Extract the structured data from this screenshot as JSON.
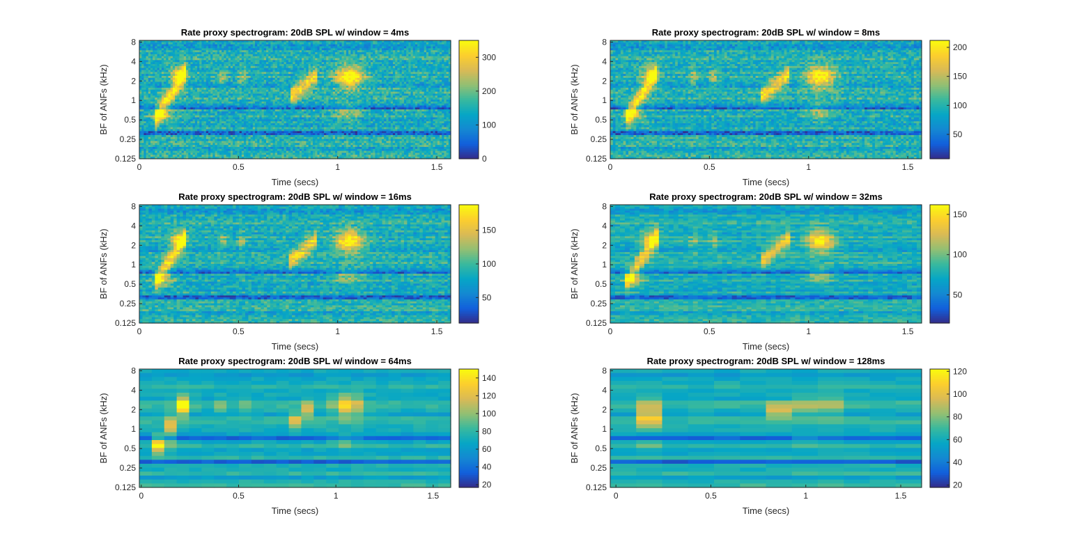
{
  "chart_data": [
    {
      "type": "heatmap",
      "title": "Rate proxy spectrogram: 20dB SPL w/ window = 4ms",
      "xlabel": "Time (secs)",
      "ylabel": "BF of ANFs (kHz)",
      "xlim": [
        0,
        1.57
      ],
      "ylim_khz": [
        0.125,
        8.5
      ],
      "yscale": "log",
      "xticks": [
        0,
        0.5,
        1,
        1.5
      ],
      "xtick_labels": [
        "0",
        "0.5",
        "1",
        "1.5"
      ],
      "yticks": [
        0.125,
        0.25,
        0.5,
        1,
        2,
        4,
        8
      ],
      "ytick_labels": [
        "0.125",
        "0.25",
        "0.5",
        "1",
        "2",
        "4",
        "8"
      ],
      "colorbar": {
        "range": [
          0,
          350
        ],
        "ticks": [
          0,
          100,
          200,
          300
        ],
        "tick_labels": [
          "0",
          "100",
          "200",
          "300"
        ]
      },
      "colormap": "parula",
      "window_ms": 4,
      "xticks_offset": false
    },
    {
      "type": "heatmap",
      "title": "Rate proxy spectrogram: 20dB SPL w/ window = 8ms",
      "xlabel": "Time (secs)",
      "ylabel": "BF of ANFs (kHz)",
      "xlim": [
        0,
        1.57
      ],
      "ylim_khz": [
        0.125,
        8.5
      ],
      "yscale": "log",
      "xticks": [
        0,
        0.5,
        1,
        1.5
      ],
      "xtick_labels": [
        "0",
        "0.5",
        "1",
        "1.5"
      ],
      "yticks": [
        0.125,
        0.25,
        0.5,
        1,
        2,
        4,
        8
      ],
      "ytick_labels": [
        "0.125",
        "0.25",
        "0.5",
        "1",
        "2",
        "4",
        "8"
      ],
      "colorbar": {
        "range": [
          8,
          212
        ],
        "ticks": [
          50,
          100,
          150,
          200
        ],
        "tick_labels": [
          "50",
          "100",
          "150",
          "200"
        ]
      },
      "colormap": "parula",
      "window_ms": 8,
      "xticks_offset": false
    },
    {
      "type": "heatmap",
      "title": "Rate proxy spectrogram: 20dB SPL w/ window = 16ms",
      "xlabel": "Time (secs)",
      "ylabel": "BF of ANFs (kHz)",
      "xlim": [
        0,
        1.57
      ],
      "ylim_khz": [
        0.125,
        8.5
      ],
      "yscale": "log",
      "xticks": [
        0,
        0.5,
        1,
        1.5
      ],
      "xtick_labels": [
        "0",
        "0.5",
        "1",
        "1.5"
      ],
      "yticks": [
        0.125,
        0.25,
        0.5,
        1,
        2,
        4,
        8
      ],
      "ytick_labels": [
        "0.125",
        "0.25",
        "0.5",
        "1",
        "2",
        "4",
        "8"
      ],
      "colorbar": {
        "range": [
          12,
          188
        ],
        "ticks": [
          50,
          100,
          150
        ],
        "tick_labels": [
          "50",
          "100",
          "150"
        ]
      },
      "colormap": "parula",
      "window_ms": 16,
      "xticks_offset": false
    },
    {
      "type": "heatmap",
      "title": "Rate proxy spectrogram: 20dB SPL w/ window = 32ms",
      "xlabel": "Time (secs)",
      "ylabel": "BF of ANFs (kHz)",
      "xlim": [
        0,
        1.57
      ],
      "ylim_khz": [
        0.125,
        8.5
      ],
      "yscale": "log",
      "xticks": [
        0,
        0.5,
        1,
        1.5
      ],
      "xtick_labels": [
        "0",
        "0.5",
        "1",
        "1.5"
      ],
      "yticks": [
        0.125,
        0.25,
        0.5,
        1,
        2,
        4,
        8
      ],
      "ytick_labels": [
        "0.125",
        "0.25",
        "0.5",
        "1",
        "2",
        "4",
        "8"
      ],
      "colorbar": {
        "range": [
          15,
          162
        ],
        "ticks": [
          50,
          100,
          150
        ],
        "tick_labels": [
          "50",
          "100",
          "150"
        ]
      },
      "colormap": "parula",
      "window_ms": 32,
      "xticks_offset": false
    },
    {
      "type": "heatmap",
      "title": "Rate proxy spectrogram: 20dB SPL w/ window = 64ms",
      "xlabel": "Time (secs)",
      "ylabel": "BF of ANFs (kHz)",
      "xlim": [
        -0.01,
        1.59
      ],
      "ylim_khz": [
        0.125,
        8.5
      ],
      "yscale": "log",
      "xticks": [
        0,
        0.5,
        1,
        1.5
      ],
      "xtick_labels": [
        "0",
        "0.5",
        "1",
        "1.5"
      ],
      "yticks": [
        0.125,
        0.25,
        0.5,
        1,
        2,
        4,
        8
      ],
      "ytick_labels": [
        "0.125",
        "0.25",
        "0.5",
        "1",
        "2",
        "4",
        "8"
      ],
      "colorbar": {
        "range": [
          17,
          150
        ],
        "ticks": [
          20,
          40,
          60,
          80,
          100,
          120,
          140
        ],
        "tick_labels": [
          "20",
          "40",
          "60",
          "80",
          "100",
          "120",
          "140"
        ]
      },
      "colormap": "parula",
      "window_ms": 64,
      "xticks_offset": true
    },
    {
      "type": "heatmap",
      "title": "Rate proxy spectrogram: 20dB SPL w/ window = 128ms",
      "xlabel": "Time (secs)",
      "ylabel": "BF of ANFs (kHz)",
      "xlim": [
        -0.03,
        1.61
      ],
      "ylim_khz": [
        0.125,
        8.5
      ],
      "yscale": "log",
      "xticks": [
        0,
        0.5,
        1,
        1.5
      ],
      "xtick_labels": [
        "0",
        "0.5",
        "1",
        "1.5"
      ],
      "yticks": [
        0.125,
        0.25,
        0.5,
        1,
        2,
        4,
        8
      ],
      "ytick_labels": [
        "0.125",
        "0.25",
        "0.5",
        "1",
        "2",
        "4",
        "8"
      ],
      "colorbar": {
        "range": [
          18,
          122
        ],
        "ticks": [
          20,
          40,
          60,
          80,
          100,
          120
        ],
        "tick_labels": [
          "20",
          "40",
          "60",
          "80",
          "100",
          "120"
        ]
      },
      "colormap": "parula",
      "window_ms": 128,
      "xticks_offset": true
    }
  ]
}
